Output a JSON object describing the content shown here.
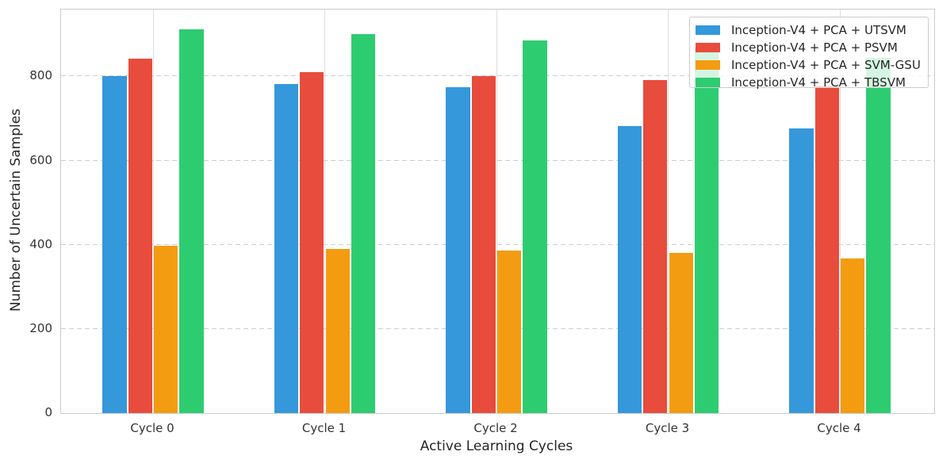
{
  "chart_data": {
    "type": "bar",
    "title": "",
    "xlabel": "Active Learning Cycles",
    "ylabel": "Number of Uncertain Samples",
    "categories": [
      "Cycle 0",
      "Cycle 1",
      "Cycle 2",
      "Cycle 3",
      "Cycle 4"
    ],
    "series": [
      {
        "name": "Inception-V4 + PCA + UTSVM",
        "color": "#3498db",
        "values": [
          800,
          781,
          775,
          683,
          676
        ]
      },
      {
        "name": "Inception-V4 + PCA + PSVM",
        "color": "#e74c3c",
        "values": [
          843,
          810,
          800,
          791,
          779
        ]
      },
      {
        "name": "Inception-V4 + PCA + SVM-GSU",
        "color": "#f39c12",
        "values": [
          398,
          390,
          387,
          380,
          368
        ]
      },
      {
        "name": "Inception-V4 + PCA + TBSVM",
        "color": "#2ecc71",
        "values": [
          912,
          900,
          885,
          865,
          845
        ]
      }
    ],
    "ylim": [
      0,
      959
    ],
    "yticks": [
      0,
      200,
      400,
      600,
      800
    ],
    "grid": true,
    "grid_style": "dashed-horizontal, light-vertical",
    "legend_position": "upper right"
  }
}
